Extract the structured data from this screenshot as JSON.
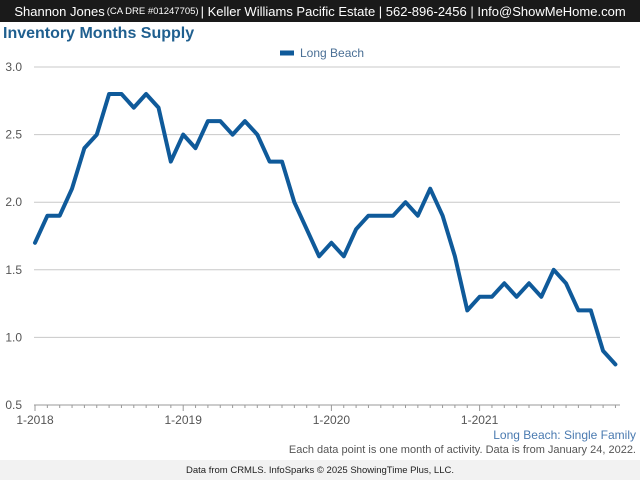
{
  "header": {
    "agent_name": "Shannon Jones",
    "dre": "(CA DRE #01247705)",
    "rest": "| Keller Williams Pacific Estate | 562-896-2456 | Info@ShowMeHome.com"
  },
  "colors": {
    "header_bg": "#1a1a1a",
    "title": "#1f5f8f",
    "series_line": "#0f5a9a",
    "grid": "#c8c8c8"
  },
  "chart_data": {
    "type": "line",
    "title": "Inventory Months Supply",
    "xlabel": "",
    "ylabel": "",
    "ylim": [
      0.5,
      3.0
    ],
    "yticks": [
      0.5,
      1.0,
      1.5,
      2.0,
      2.5,
      3.0
    ],
    "ytick_labels": [
      "0.5",
      "1.0",
      "1.5",
      "2.0",
      "2.5",
      "3.0"
    ],
    "xtick_labels": [
      "1-2018",
      "1-2019",
      "1-2020",
      "1-2021"
    ],
    "xtick_indices": [
      0,
      12,
      24,
      36
    ],
    "grid": true,
    "legend": "top-center",
    "series": [
      {
        "name": "Long Beach",
        "values": [
          1.7,
          1.9,
          1.9,
          2.1,
          2.4,
          2.5,
          2.8,
          2.8,
          2.7,
          2.8,
          2.7,
          2.3,
          2.5,
          2.4,
          2.6,
          2.6,
          2.5,
          2.6,
          2.5,
          2.3,
          2.3,
          2.0,
          1.8,
          1.6,
          1.7,
          1.6,
          1.8,
          1.9,
          1.9,
          1.9,
          2.0,
          1.9,
          2.1,
          1.9,
          1.6,
          1.2,
          1.3,
          1.3,
          1.4,
          1.3,
          1.4,
          1.3,
          1.5,
          1.4,
          1.2,
          1.2,
          0.9,
          0.8
        ]
      }
    ]
  },
  "segment_label": "Long Beach: Single Family",
  "footnote": "Each data point is one month of activity. Data is from January 24, 2022.",
  "footer": "Data from CRMLS. InfoSparks © 2025 ShowingTime Plus, LLC."
}
